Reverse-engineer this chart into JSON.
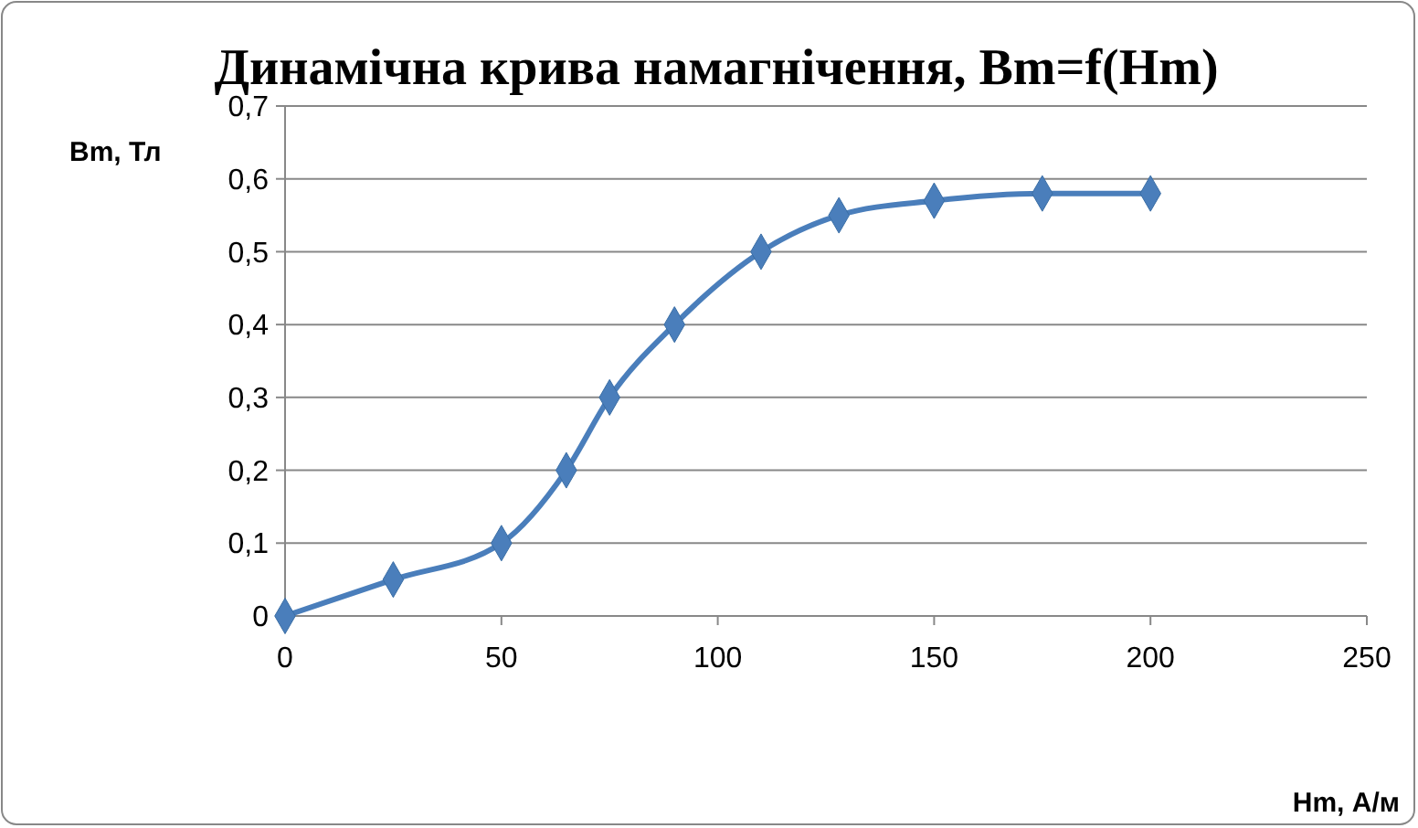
{
  "chart_data": {
    "type": "line",
    "title": "Динамічна крива намагнічення, Bm=f(Hm)",
    "xlabel": "Hm, А/м",
    "ylabel": "Bm, Тл",
    "x": [
      0,
      25,
      50,
      65,
      75,
      90,
      110,
      128,
      150,
      175,
      200
    ],
    "series": [
      {
        "color": "#4a7ebb",
        "values": [
          0,
          0.05,
          0.1,
          0.2,
          0.3,
          0.4,
          0.5,
          0.55,
          0.57,
          0.58,
          0.58
        ]
      }
    ],
    "xlim": [
      0,
      250
    ],
    "xticks": [
      0,
      50,
      100,
      150,
      200,
      250
    ],
    "ylim": [
      0,
      0.7
    ],
    "yticks": [
      {
        "value": 0,
        "label": "0"
      },
      {
        "value": 0.1,
        "label": "0,1"
      },
      {
        "value": 0.2,
        "label": "0,2"
      },
      {
        "value": 0.3,
        "label": "0,3"
      },
      {
        "value": 0.4,
        "label": "0,4"
      },
      {
        "value": 0.5,
        "label": "0,5"
      },
      {
        "value": 0.6,
        "label": "0,6"
      },
      {
        "value": 0.7,
        "label": "0,7"
      }
    ],
    "grid": "y",
    "marker": "diamond",
    "line_style": "solid"
  }
}
